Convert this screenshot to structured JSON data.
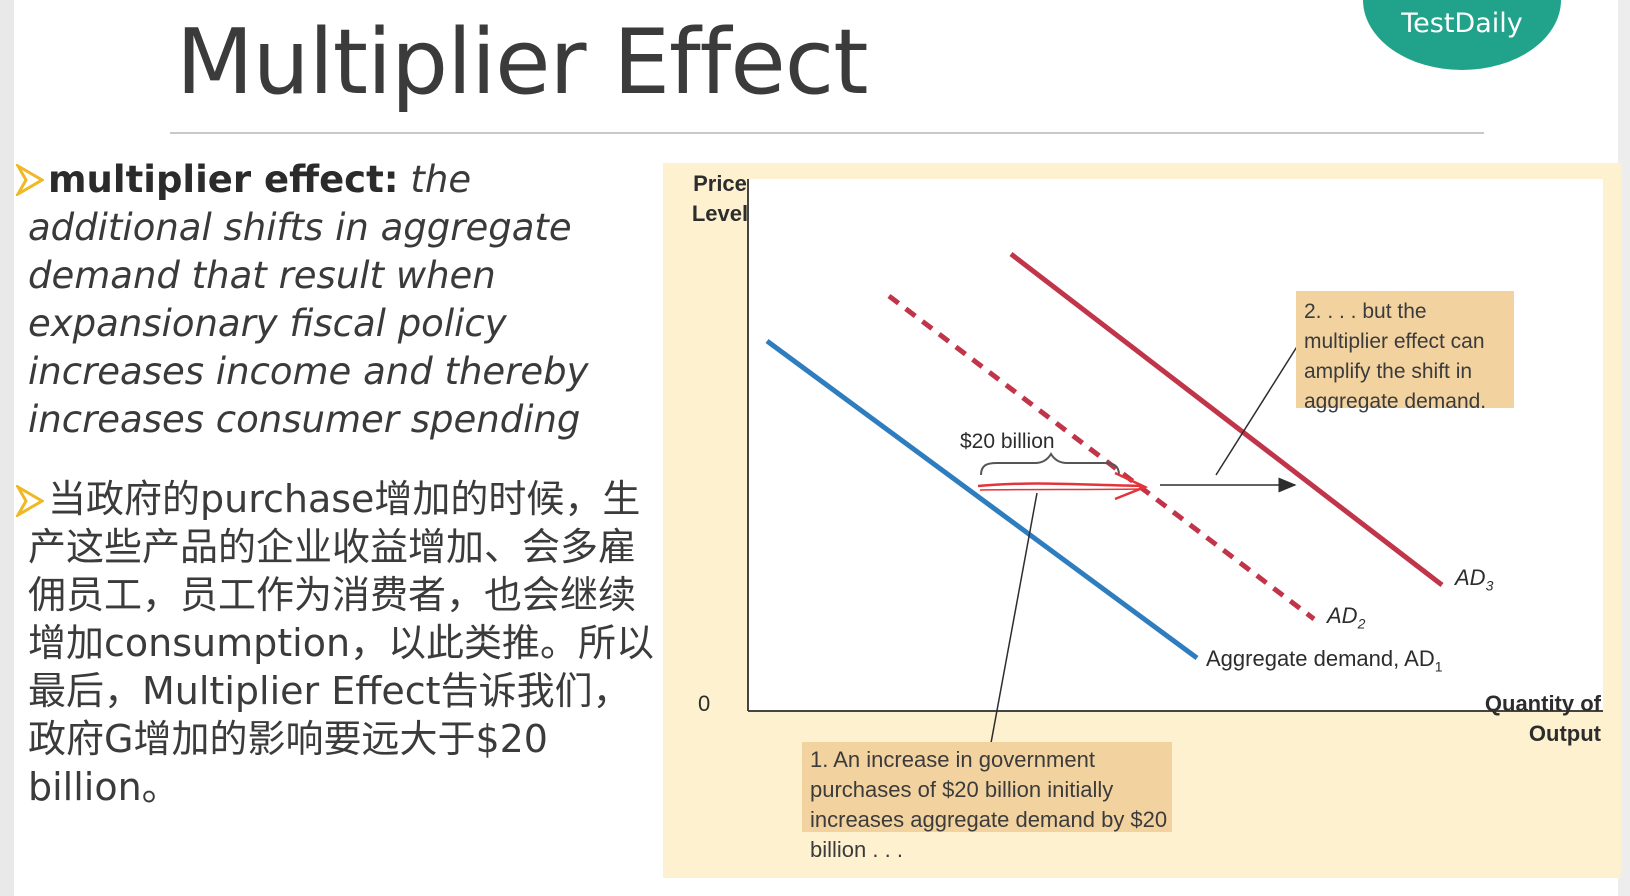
{
  "slide": {
    "title": "Multiplier Effect",
    "watermark": "TestDaily",
    "logo_text": "TestDaily",
    "colors": {
      "logo": "#21a38b",
      "bullet": "#f1b825",
      "panel": "#fdf1cf",
      "callout": "#f2d3a0",
      "ad1": "#2e7dbf",
      "ad2": "#c0354a",
      "ad3": "#c0354a",
      "arrow": "#e3343a"
    }
  },
  "bullets": {
    "icon": "triangle-arrow-icon",
    "definition": {
      "term": "multiplier effect:",
      "text": "the additional shifts in aggregate demand that result when expansionary fiscal policy increases income and thereby increases consumer spending"
    },
    "chinese": "当政府的purchase增加的时候，生产这些产品的企业收益增加、会多雇佣员工，员工作为消费者，也会继续增加consumption，以此类推。所以最后，Multiplier Effect告诉我们，政府G增加的影响要远大于$20 billion。"
  },
  "chart_data": {
    "type": "line",
    "ylabel": "Price Level",
    "xlabel": "Quantity of Output",
    "origin_label": "0",
    "series": [
      {
        "name": "Aggregate demand, AD1",
        "style": "solid",
        "color": "#2e7dbf"
      },
      {
        "name": "AD2",
        "style": "dashed",
        "color": "#c0354a"
      },
      {
        "name": "AD3",
        "style": "solid",
        "color": "#c0354a"
      }
    ],
    "labels": {
      "ad1": "Aggregate demand, AD",
      "ad1_sub": "1",
      "ad2": "AD",
      "ad2_sub": "2",
      "ad3": "AD",
      "ad3_sub": "3"
    },
    "shift_label": "$20 billion",
    "annotations": {
      "top": "2. . . . but the multiplier effect can amplify the shift in aggregate demand.",
      "bottom": "1. An increase in government purchases of $20 billion initially increases aggregate demand by $20 billion . . ."
    }
  }
}
